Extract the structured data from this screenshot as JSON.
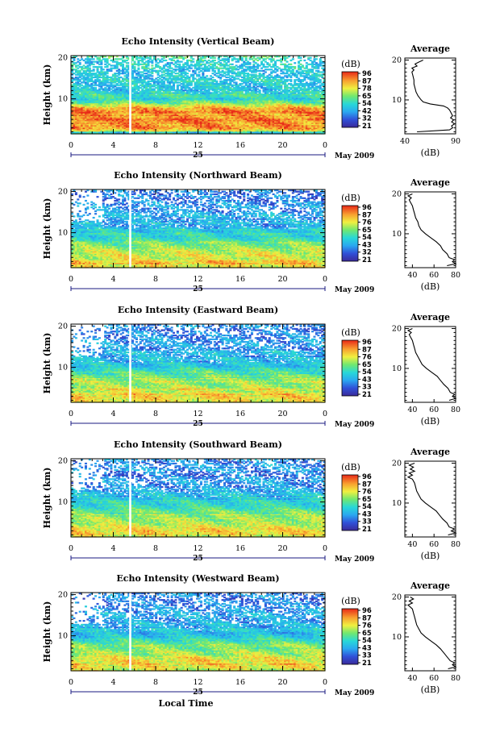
{
  "chart_data": [
    {
      "type": "heatmap",
      "title": "Echo Intensity (Vertical Beam)",
      "ylabel": "Height (km)",
      "xlabel": "",
      "x_ticks": [
        "0",
        "4",
        "8",
        "12",
        "16",
        "20",
        "0"
      ],
      "xlim": [
        0,
        24
      ],
      "y_ticks": [
        "20",
        "10"
      ],
      "ylim": [
        1.5,
        20.5
      ],
      "date_label": "25",
      "month_year": "May 2009",
      "data_gap_hours": [
        5.5,
        5.7
      ],
      "colorbar": {
        "unit": "(dB)",
        "ticks": [
          "96",
          "87",
          "78",
          "65",
          "54",
          "42",
          "32",
          "21"
        ]
      },
      "profile": {
        "title": "Average",
        "xlabel": "(dB)",
        "x_ticks": [
          "40",
          "90"
        ],
        "xlim": [
          40,
          90
        ],
        "y_ticks": [
          "20",
          "10"
        ],
        "ylim": [
          1.5,
          20.5
        ],
        "heights": [
          2.0,
          2.5,
          3.0,
          3.5,
          4.0,
          4.5,
          5.0,
          5.5,
          6.0,
          6.5,
          7.0,
          7.5,
          8.0,
          8.5,
          9.0,
          9.5,
          10.0,
          11.0,
          12.0,
          13.0,
          14.0,
          15.0,
          16.0,
          17.0,
          17.5,
          18.0,
          18.5,
          19.0,
          19.5,
          20.0
        ],
        "values": [
          52,
          84,
          87,
          86,
          89,
          86,
          88,
          85,
          87,
          86,
          85,
          84,
          82,
          78,
          65,
          58,
          56,
          53,
          51,
          50,
          49,
          49,
          48,
          47,
          49,
          47,
          52,
          50,
          54,
          58
        ]
      }
    },
    {
      "type": "heatmap",
      "title": "Echo Intensity (Northward Beam)",
      "ylabel": "Height (km)",
      "xlabel": "",
      "x_ticks": [
        "0",
        "4",
        "8",
        "12",
        "16",
        "20",
        "0"
      ],
      "xlim": [
        0,
        24
      ],
      "y_ticks": [
        "20",
        "10"
      ],
      "ylim": [
        1.5,
        20.5
      ],
      "date_label": "25",
      "month_year": "May 2009",
      "data_gap_hours": [
        5.5,
        5.7
      ],
      "colorbar": {
        "unit": "(dB)",
        "ticks": [
          "96",
          "87",
          "76",
          "65",
          "54",
          "43",
          "32",
          "21"
        ]
      },
      "profile": {
        "title": "Average",
        "xlabel": "(dB)",
        "x_ticks": [
          "40",
          "60",
          "80"
        ],
        "xlim": [
          33,
          80
        ],
        "y_ticks": [
          "20",
          "10"
        ],
        "ylim": [
          1.5,
          20.5
        ],
        "heights": [
          2.0,
          2.5,
          3.0,
          3.5,
          4.0,
          5.0,
          6.0,
          7.0,
          8.0,
          9.0,
          10.0,
          11.0,
          12.0,
          13.0,
          14.0,
          15.0,
          16.0,
          17.0,
          18.0,
          18.5,
          19.0,
          19.5,
          20.0
        ],
        "values": [
          72,
          80,
          77,
          79,
          74,
          72,
          68,
          66,
          62,
          57,
          52,
          48,
          46,
          45,
          43,
          42,
          41,
          40,
          38,
          37,
          39,
          36,
          40
        ]
      }
    },
    {
      "type": "heatmap",
      "title": "Echo Intensity (Eastward Beam)",
      "ylabel": "Height (km)",
      "xlabel": "",
      "x_ticks": [
        "0",
        "4",
        "8",
        "12",
        "16",
        "20",
        "0"
      ],
      "xlim": [
        0,
        24
      ],
      "y_ticks": [
        "20",
        "10"
      ],
      "ylim": [
        1.5,
        20.5
      ],
      "date_label": "25",
      "month_year": "May 2009",
      "data_gap_hours": [
        5.5,
        5.7
      ],
      "colorbar": {
        "unit": "(dB)",
        "ticks": [
          "96",
          "87",
          "76",
          "65",
          "54",
          "43",
          "33",
          "21"
        ]
      },
      "profile": {
        "title": "Average",
        "xlabel": "(dB)",
        "x_ticks": [
          "40",
          "60",
          "80"
        ],
        "xlim": [
          33,
          80
        ],
        "y_ticks": [
          "20",
          "10"
        ],
        "ylim": [
          1.5,
          20.5
        ],
        "heights": [
          2.0,
          2.5,
          3.0,
          3.5,
          4.0,
          5.0,
          6.0,
          7.0,
          8.0,
          9.0,
          10.0,
          11.0,
          12.0,
          13.0,
          14.0,
          15.0,
          16.0,
          17.0,
          18.0,
          18.5,
          19.0,
          19.5,
          20.0
        ],
        "values": [
          74,
          80,
          77,
          79,
          75,
          73,
          69,
          66,
          63,
          58,
          53,
          49,
          47,
          45,
          43,
          42,
          41,
          40,
          38,
          37,
          39,
          36,
          40
        ]
      }
    },
    {
      "type": "heatmap",
      "title": "Echo Intensity (Southward Beam)",
      "ylabel": "Height (km)",
      "xlabel": "",
      "x_ticks": [
        "0",
        "4",
        "8",
        "12",
        "16",
        "20",
        "0"
      ],
      "xlim": [
        0,
        24
      ],
      "y_ticks": [
        "20",
        "10"
      ],
      "ylim": [
        1.5,
        20.5
      ],
      "date_label": "25",
      "month_year": "May 2009",
      "data_gap_hours": [
        5.5,
        5.7
      ],
      "colorbar": {
        "unit": "(dB)",
        "ticks": [
          "96",
          "87",
          "76",
          "65",
          "54",
          "43",
          "33",
          "21"
        ]
      },
      "profile": {
        "title": "Average",
        "xlabel": "(dB)",
        "x_ticks": [
          "40",
          "60",
          "80"
        ],
        "xlim": [
          33,
          80
        ],
        "y_ticks": [
          "20",
          "10"
        ],
        "ylim": [
          1.5,
          20.5
        ],
        "heights": [
          2.0,
          2.5,
          3.0,
          3.5,
          4.0,
          5.0,
          6.0,
          7.0,
          8.0,
          9.0,
          10.0,
          11.0,
          12.0,
          13.0,
          14.0,
          15.0,
          16.0,
          16.5,
          17.0,
          17.5,
          18.0,
          18.5,
          19.0,
          19.5,
          20.0
        ],
        "values": [
          73,
          80,
          76,
          79,
          74,
          72,
          68,
          65,
          62,
          57,
          52,
          48,
          46,
          44,
          43,
          42,
          40,
          36,
          40,
          37,
          42,
          38,
          41,
          37,
          42
        ]
      }
    },
    {
      "type": "heatmap",
      "title": "Echo Intensity (Westward Beam)",
      "ylabel": "Height (km)",
      "xlabel": "Local Time",
      "x_ticks": [
        "0",
        "4",
        "8",
        "12",
        "16",
        "20",
        "0"
      ],
      "xlim": [
        0,
        24
      ],
      "y_ticks": [
        "20",
        "10"
      ],
      "ylim": [
        1.5,
        20.5
      ],
      "date_label": "25",
      "month_year": "May 2009",
      "data_gap_hours": [
        5.5,
        5.7
      ],
      "colorbar": {
        "unit": "(dB)",
        "ticks": [
          "96",
          "87",
          "76",
          "65",
          "54",
          "43",
          "33",
          "21"
        ]
      },
      "profile": {
        "title": "Average",
        "xlabel": "(dB)",
        "x_ticks": [
          "40",
          "60",
          "80"
        ],
        "xlim": [
          33,
          80
        ],
        "y_ticks": [
          "20",
          "10"
        ],
        "ylim": [
          1.5,
          20.5
        ],
        "heights": [
          2.0,
          2.5,
          3.0,
          3.5,
          4.0,
          5.0,
          6.0,
          7.0,
          8.0,
          9.0,
          10.0,
          11.0,
          12.0,
          13.0,
          14.0,
          15.0,
          16.0,
          17.0,
          17.5,
          18.0,
          18.5,
          19.0,
          19.5,
          20.0
        ],
        "values": [
          73,
          80,
          77,
          79,
          75,
          72,
          69,
          66,
          62,
          57,
          52,
          48,
          46,
          44,
          43,
          42,
          41,
          40,
          38,
          36,
          40,
          37,
          41,
          38
        ]
      }
    }
  ]
}
